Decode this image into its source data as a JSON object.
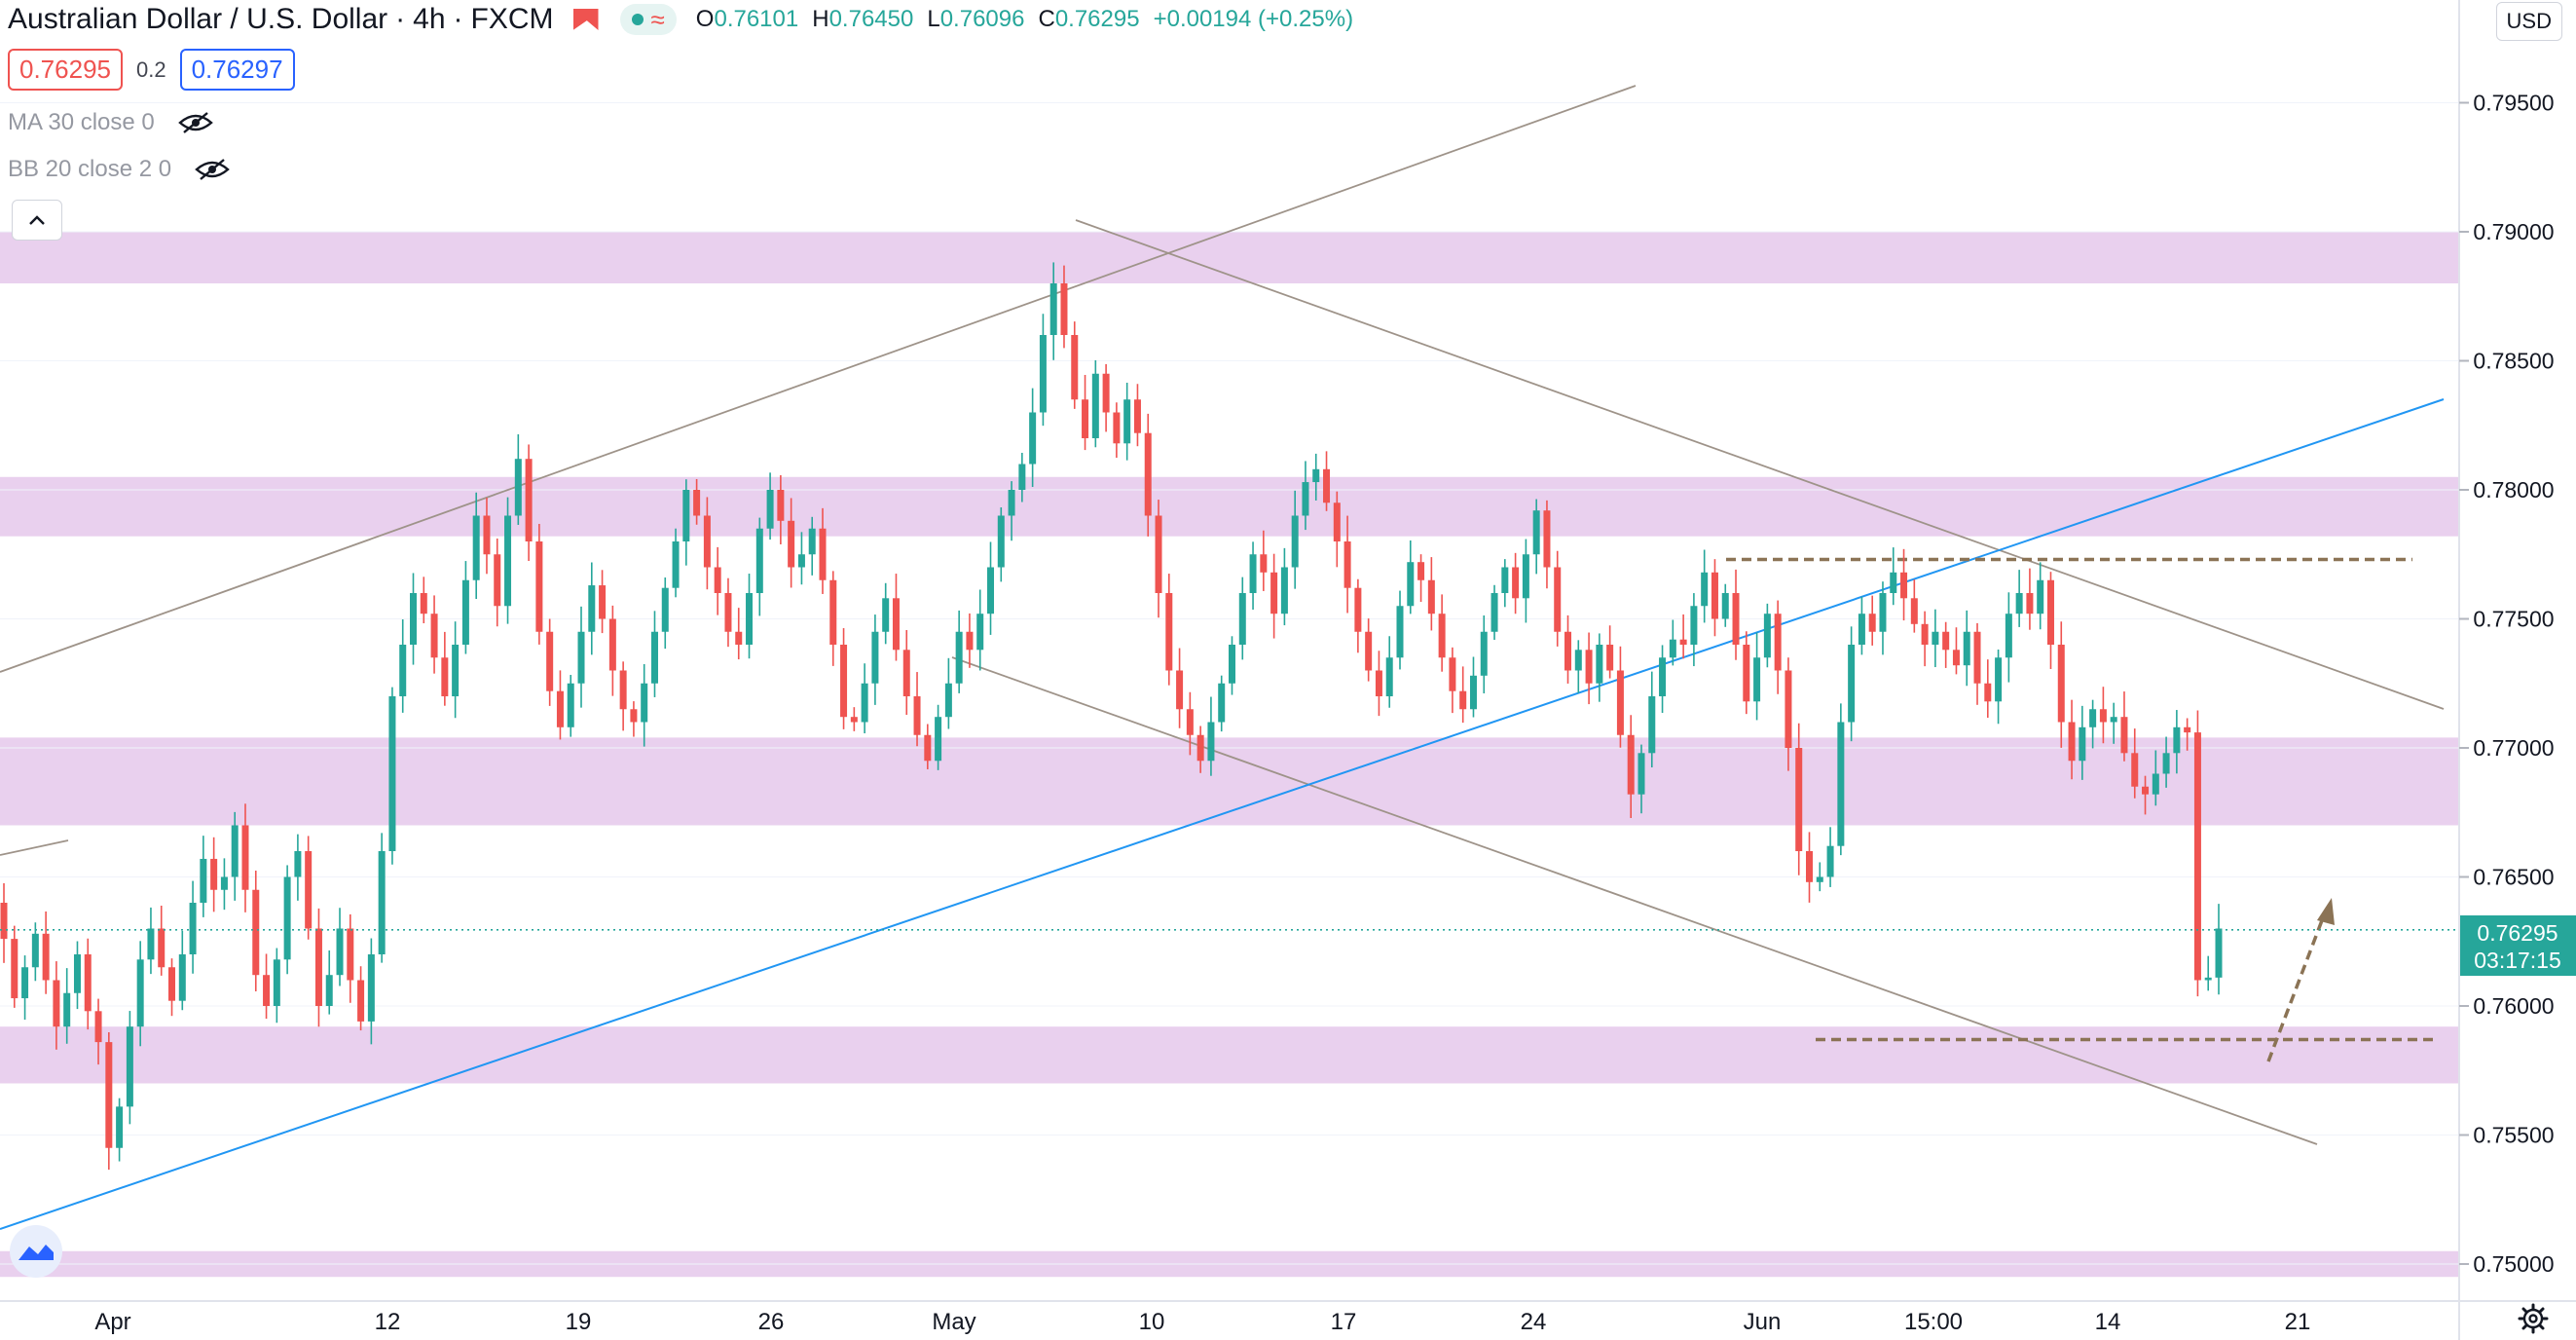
{
  "header": {
    "symbol": "Australian Dollar / U.S. Dollar",
    "interval": "4h",
    "exchange": "FXCM",
    "open_label": "O",
    "open": "0.76101",
    "high_label": "H",
    "high": "0.76450",
    "low_label": "L",
    "low": "0.76096",
    "close_label": "C",
    "close": "0.76295",
    "change": "+0.00194 (+0.25%)"
  },
  "trade": {
    "sell": "0.76295",
    "spread": "0.2",
    "buy": "0.76297"
  },
  "indicators": {
    "ma": "MA 30 close 0",
    "bb": "BB 20 close 2 0"
  },
  "currency": "USD",
  "price_axis": {
    "labels": [
      "0.79500",
      "0.79000",
      "0.78500",
      "0.78000",
      "0.77500",
      "0.77000",
      "0.76500",
      "0.76000",
      "0.75500",
      "0.75000"
    ],
    "current_price": "0.76295",
    "countdown": "03:17:15"
  },
  "time_axis": {
    "labels": [
      "Apr",
      "12",
      "19",
      "26",
      "May",
      "10",
      "17",
      "24",
      "Jun",
      "15:00",
      "14",
      "21"
    ]
  },
  "colors": {
    "up": "#26a69a",
    "down": "#ef5350",
    "zone": "#e1bee7",
    "trendline": "#2196f3",
    "line": "#9e9389",
    "level": "#8b7355"
  },
  "chart_data": {
    "type": "candlestick",
    "symbol": "AUDUSD",
    "timeframe": "4h",
    "y_range": [
      0.7495,
      0.7975
    ],
    "x_ticks": [
      "Apr",
      "12",
      "19",
      "26",
      "May",
      "10",
      "17",
      "24",
      "Jun",
      "15:00",
      "14",
      "21"
    ],
    "support_resistance_zones": [
      [
        0.788,
        0.79
      ],
      [
        0.7782,
        0.7805
      ],
      [
        0.767,
        0.7704
      ],
      [
        0.757,
        0.7592
      ],
      [
        0.7495,
        0.7505
      ]
    ],
    "horizontal_levels": [
      0.7773,
      0.7587
    ],
    "price_path": [
      [
        0.764,
        0.7626
      ],
      [
        0.7626,
        0.7603
      ],
      [
        0.7603,
        0.7615
      ],
      [
        0.7615,
        0.7628
      ],
      [
        0.7628,
        0.761
      ],
      [
        0.761,
        0.7592
      ],
      [
        0.7592,
        0.7605
      ],
      [
        0.7605,
        0.762
      ],
      [
        0.762,
        0.7598
      ],
      [
        0.7598,
        0.7586
      ],
      [
        0.7586,
        0.7545
      ],
      [
        0.7545,
        0.7561
      ],
      [
        0.7561,
        0.7592
      ],
      [
        0.7592,
        0.7618
      ],
      [
        0.7618,
        0.763
      ],
      [
        0.763,
        0.7615
      ],
      [
        0.7615,
        0.7602
      ],
      [
        0.7602,
        0.762
      ],
      [
        0.762,
        0.764
      ],
      [
        0.764,
        0.7657
      ],
      [
        0.7657,
        0.7645
      ],
      [
        0.7645,
        0.765
      ],
      [
        0.765,
        0.767
      ],
      [
        0.767,
        0.7645
      ],
      [
        0.7645,
        0.7612
      ],
      [
        0.7612,
        0.76
      ],
      [
        0.76,
        0.7618
      ],
      [
        0.7618,
        0.765
      ],
      [
        0.765,
        0.766
      ],
      [
        0.766,
        0.763
      ],
      [
        0.763,
        0.76
      ],
      [
        0.76,
        0.7612
      ],
      [
        0.7612,
        0.763
      ],
      [
        0.763,
        0.761
      ],
      [
        0.761,
        0.7594
      ],
      [
        0.7594,
        0.762
      ],
      [
        0.762,
        0.766
      ],
      [
        0.766,
        0.772
      ],
      [
        0.772,
        0.774
      ],
      [
        0.774,
        0.776
      ],
      [
        0.776,
        0.7752
      ],
      [
        0.7752,
        0.7735
      ],
      [
        0.7735,
        0.772
      ],
      [
        0.772,
        0.774
      ],
      [
        0.774,
        0.7765
      ],
      [
        0.7765,
        0.779
      ],
      [
        0.779,
        0.7775
      ],
      [
        0.7775,
        0.7755
      ],
      [
        0.7755,
        0.779
      ],
      [
        0.779,
        0.7812
      ],
      [
        0.7812,
        0.778
      ],
      [
        0.778,
        0.7745
      ],
      [
        0.7745,
        0.7722
      ],
      [
        0.7722,
        0.7708
      ],
      [
        0.7708,
        0.7725
      ],
      [
        0.7725,
        0.7745
      ],
      [
        0.7745,
        0.7763
      ],
      [
        0.7763,
        0.775
      ],
      [
        0.775,
        0.773
      ],
      [
        0.773,
        0.7715
      ],
      [
        0.7715,
        0.771
      ],
      [
        0.771,
        0.7725
      ],
      [
        0.7725,
        0.7745
      ],
      [
        0.7745,
        0.7762
      ],
      [
        0.7762,
        0.778
      ],
      [
        0.778,
        0.78
      ],
      [
        0.78,
        0.779
      ],
      [
        0.779,
        0.777
      ],
      [
        0.777,
        0.776
      ],
      [
        0.776,
        0.7745
      ],
      [
        0.7745,
        0.774
      ],
      [
        0.774,
        0.776
      ],
      [
        0.776,
        0.7785
      ],
      [
        0.7785,
        0.78
      ],
      [
        0.78,
        0.7788
      ],
      [
        0.7788,
        0.777
      ],
      [
        0.777,
        0.7775
      ],
      [
        0.7775,
        0.7785
      ],
      [
        0.7785,
        0.7765
      ],
      [
        0.7765,
        0.774
      ],
      [
        0.774,
        0.7712
      ],
      [
        0.7712,
        0.771
      ],
      [
        0.771,
        0.7725
      ],
      [
        0.7725,
        0.7745
      ],
      [
        0.7745,
        0.7758
      ],
      [
        0.7758,
        0.7738
      ],
      [
        0.7738,
        0.772
      ],
      [
        0.772,
        0.7705
      ],
      [
        0.7705,
        0.7695
      ],
      [
        0.7695,
        0.7712
      ],
      [
        0.7712,
        0.7725
      ],
      [
        0.7725,
        0.7745
      ],
      [
        0.7745,
        0.7738
      ],
      [
        0.7738,
        0.7752
      ],
      [
        0.7752,
        0.777
      ],
      [
        0.777,
        0.779
      ],
      [
        0.779,
        0.78
      ],
      [
        0.78,
        0.781
      ],
      [
        0.781,
        0.783
      ],
      [
        0.783,
        0.786
      ],
      [
        0.786,
        0.788
      ],
      [
        0.788,
        0.786
      ],
      [
        0.786,
        0.7835
      ],
      [
        0.7835,
        0.782
      ],
      [
        0.782,
        0.7845
      ],
      [
        0.7845,
        0.783
      ],
      [
        0.783,
        0.7818
      ],
      [
        0.7818,
        0.7835
      ],
      [
        0.7835,
        0.7822
      ],
      [
        0.7822,
        0.779
      ],
      [
        0.779,
        0.776
      ],
      [
        0.776,
        0.773
      ],
      [
        0.773,
        0.7715
      ],
      [
        0.7715,
        0.7705
      ],
      [
        0.7705,
        0.7695
      ],
      [
        0.7695,
        0.771
      ],
      [
        0.771,
        0.7725
      ],
      [
        0.7725,
        0.774
      ],
      [
        0.774,
        0.776
      ],
      [
        0.776,
        0.7775
      ],
      [
        0.7775,
        0.7768
      ],
      [
        0.7768,
        0.7752
      ],
      [
        0.7752,
        0.777
      ],
      [
        0.777,
        0.779
      ],
      [
        0.779,
        0.7803
      ],
      [
        0.7803,
        0.7808
      ],
      [
        0.7808,
        0.7795
      ],
      [
        0.7795,
        0.778
      ],
      [
        0.778,
        0.7762
      ],
      [
        0.7762,
        0.7745
      ],
      [
        0.7745,
        0.773
      ],
      [
        0.773,
        0.772
      ],
      [
        0.772,
        0.7735
      ],
      [
        0.7735,
        0.7755
      ],
      [
        0.7755,
        0.7772
      ],
      [
        0.7772,
        0.7765
      ],
      [
        0.7765,
        0.7752
      ],
      [
        0.7752,
        0.7735
      ],
      [
        0.7735,
        0.7722
      ],
      [
        0.7722,
        0.7715
      ],
      [
        0.7715,
        0.7728
      ],
      [
        0.7728,
        0.7745
      ],
      [
        0.7745,
        0.776
      ],
      [
        0.776,
        0.777
      ],
      [
        0.777,
        0.7758
      ],
      [
        0.7758,
        0.7775
      ],
      [
        0.7775,
        0.7792
      ],
      [
        0.7792,
        0.777
      ],
      [
        0.777,
        0.7745
      ],
      [
        0.7745,
        0.773
      ],
      [
        0.773,
        0.7738
      ],
      [
        0.7738,
        0.7725
      ],
      [
        0.7725,
        0.774
      ],
      [
        0.774,
        0.773
      ],
      [
        0.773,
        0.7705
      ],
      [
        0.7705,
        0.7682
      ],
      [
        0.7682,
        0.7698
      ],
      [
        0.7698,
        0.772
      ],
      [
        0.772,
        0.7735
      ],
      [
        0.7735,
        0.7742
      ],
      [
        0.7742,
        0.774
      ],
      [
        0.774,
        0.7755
      ],
      [
        0.7755,
        0.7768
      ],
      [
        0.7768,
        0.775
      ],
      [
        0.775,
        0.776
      ],
      [
        0.776,
        0.774
      ],
      [
        0.774,
        0.7718
      ],
      [
        0.7718,
        0.7735
      ],
      [
        0.7735,
        0.7752
      ],
      [
        0.7752,
        0.773
      ],
      [
        0.773,
        0.77
      ],
      [
        0.77,
        0.766
      ],
      [
        0.766,
        0.7648
      ],
      [
        0.7648,
        0.765
      ],
      [
        0.765,
        0.7662
      ],
      [
        0.7662,
        0.771
      ],
      [
        0.771,
        0.774
      ],
      [
        0.774,
        0.7752
      ],
      [
        0.7752,
        0.7745
      ],
      [
        0.7745,
        0.776
      ],
      [
        0.776,
        0.7768
      ],
      [
        0.7768,
        0.7758
      ],
      [
        0.7758,
        0.7748
      ],
      [
        0.7748,
        0.774
      ],
      [
        0.774,
        0.7745
      ],
      [
        0.7745,
        0.7738
      ],
      [
        0.7738,
        0.7732
      ],
      [
        0.7732,
        0.7745
      ],
      [
        0.7745,
        0.7725
      ],
      [
        0.7725,
        0.7718
      ],
      [
        0.7718,
        0.7735
      ],
      [
        0.7735,
        0.7752
      ],
      [
        0.7752,
        0.776
      ],
      [
        0.776,
        0.7752
      ],
      [
        0.7752,
        0.7765
      ],
      [
        0.7765,
        0.774
      ],
      [
        0.774,
        0.771
      ],
      [
        0.771,
        0.7695
      ],
      [
        0.7695,
        0.7708
      ],
      [
        0.7708,
        0.7715
      ],
      [
        0.7715,
        0.771
      ],
      [
        0.771,
        0.7712
      ],
      [
        0.7712,
        0.7698
      ],
      [
        0.7698,
        0.7685
      ],
      [
        0.7685,
        0.7682
      ],
      [
        0.7682,
        0.769
      ],
      [
        0.769,
        0.7698
      ],
      [
        0.7698,
        0.7708
      ],
      [
        0.7708,
        0.7706
      ],
      [
        0.7706,
        0.761
      ],
      [
        0.761,
        0.7611
      ],
      [
        0.7611,
        0.763
      ]
    ]
  }
}
